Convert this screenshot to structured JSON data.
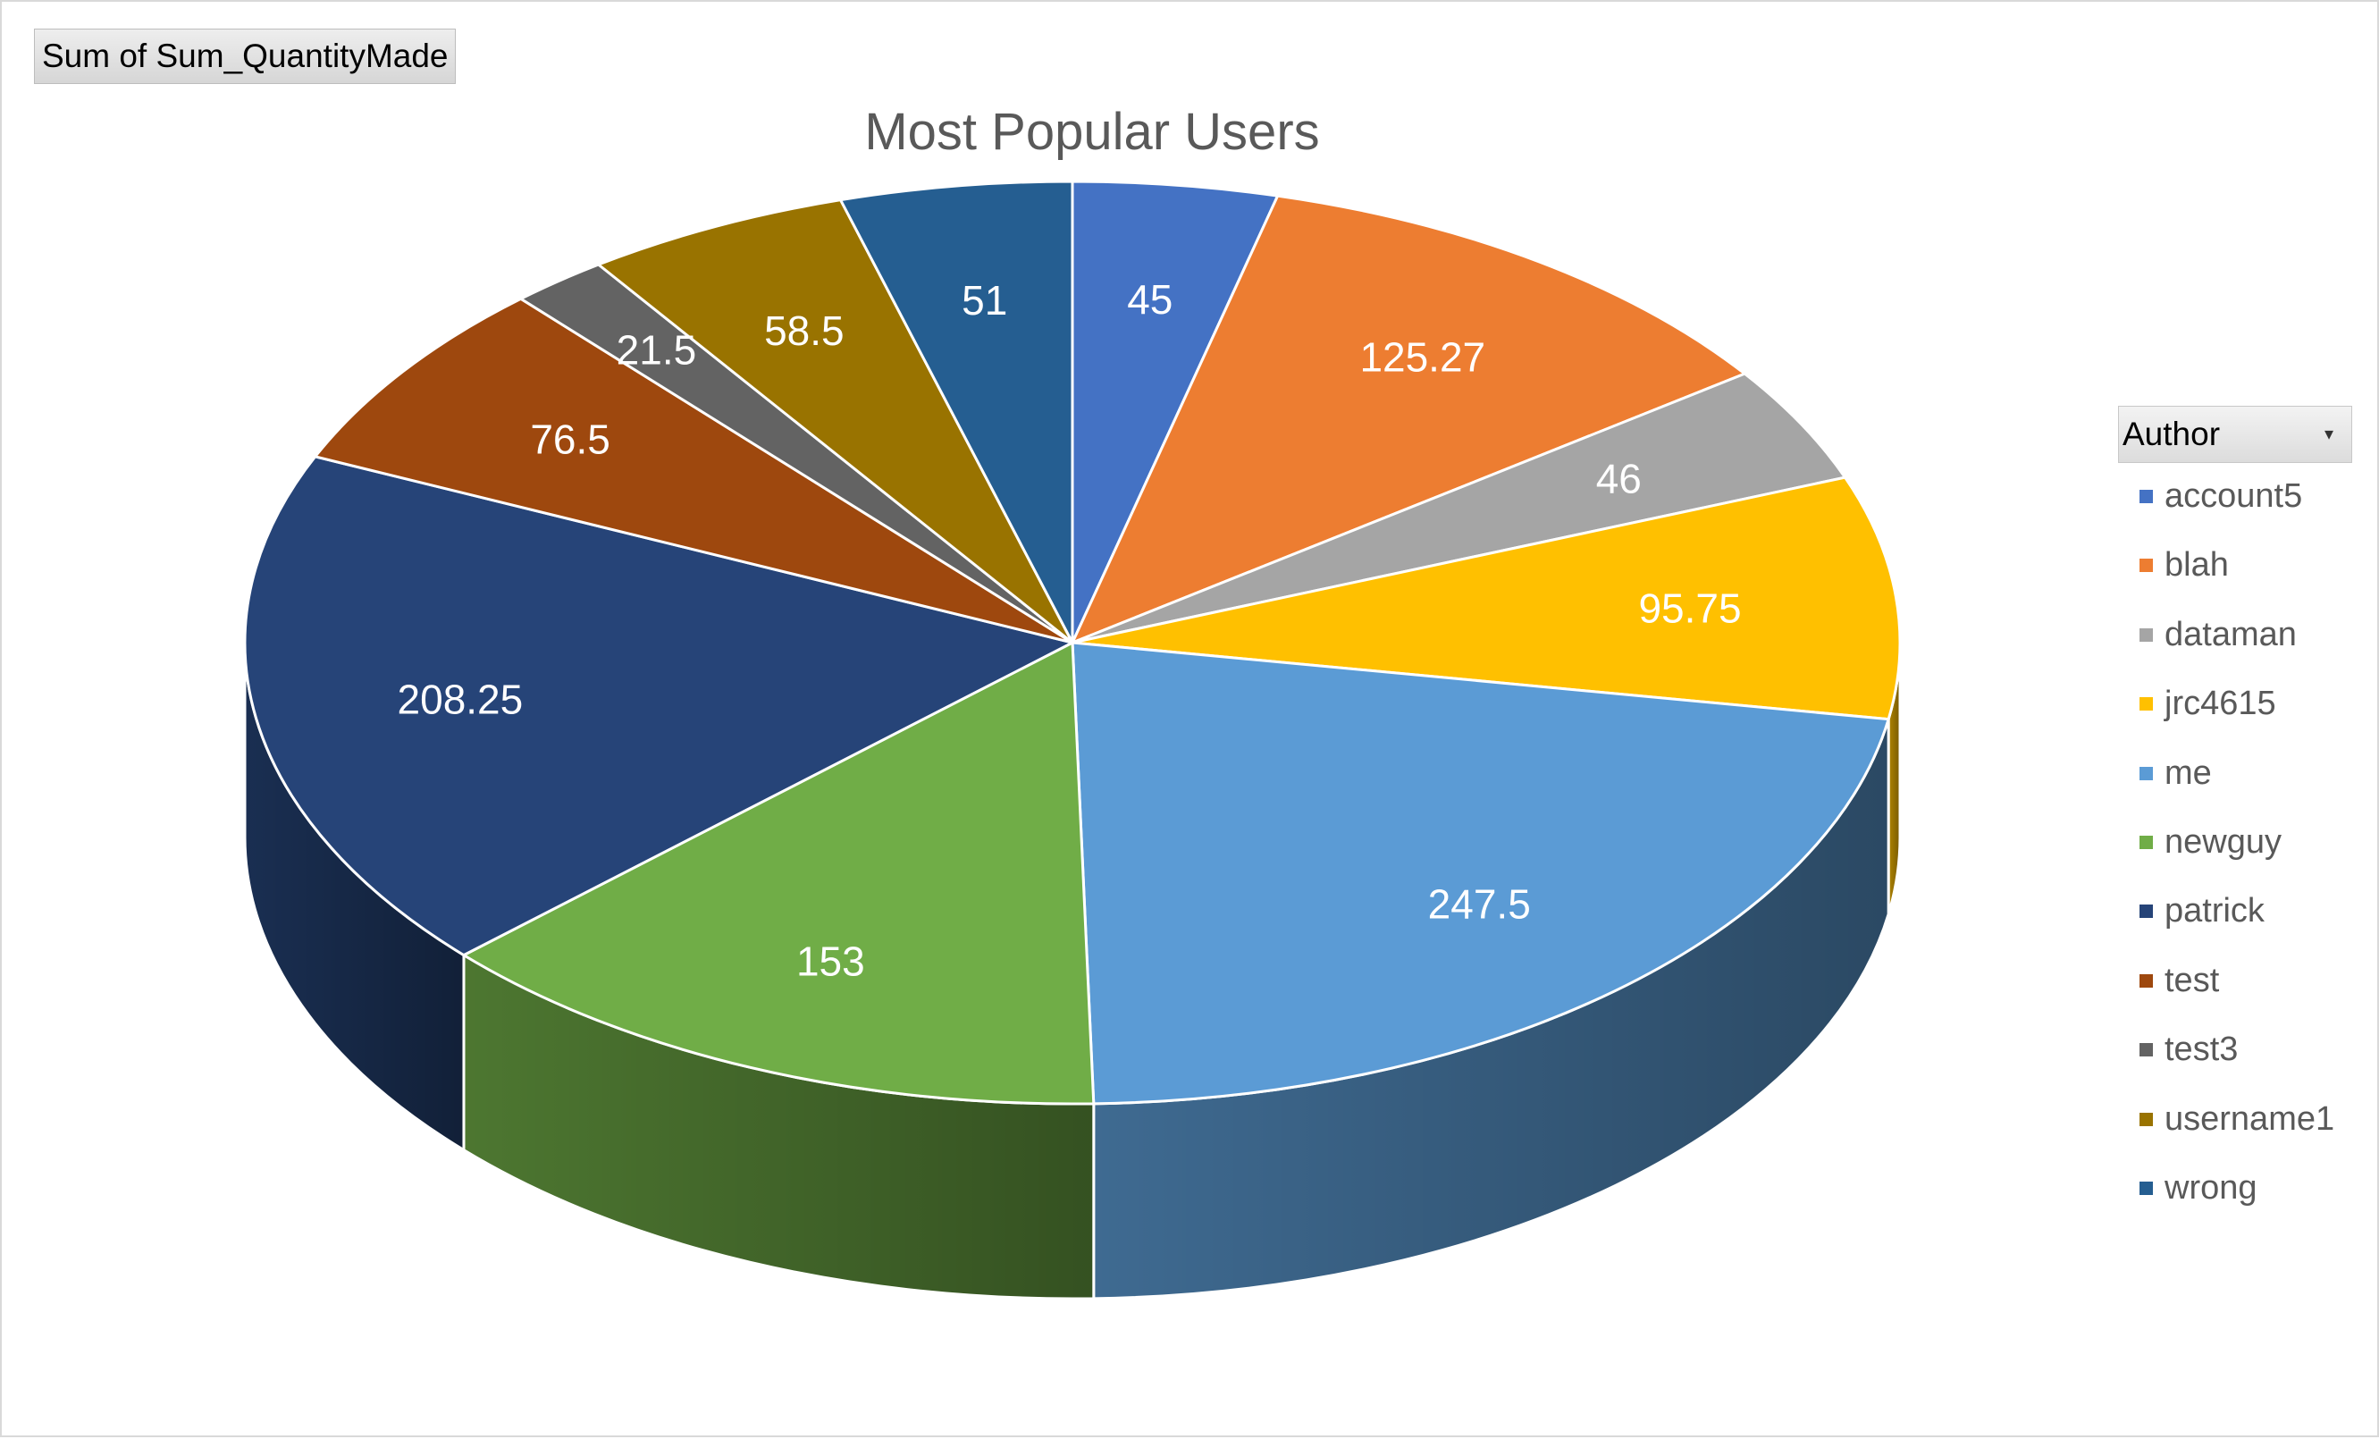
{
  "field_button": "Sum of Sum_QuantityMade",
  "legend_filter": {
    "label": "Author",
    "arrow": "▾"
  },
  "chart_data": {
    "type": "pie",
    "title": "Most Popular Users",
    "legend_title": "Author",
    "legend_position": "right",
    "style": "3d",
    "categories": [
      "account5",
      "blah",
      "dataman",
      "jrc4615",
      "me",
      "newguy",
      "patrick",
      "test",
      "test3",
      "username1",
      "wrong"
    ],
    "values": [
      45,
      125.27,
      46,
      95.75,
      247.5,
      153,
      208.25,
      76.5,
      21.5,
      58.5,
      51
    ],
    "data_labels": [
      "45",
      "125.27",
      "46",
      "95.75",
      "247.5",
      "153",
      "208.25",
      "76.5",
      "21.5",
      "58.5",
      "51"
    ],
    "colors": [
      "#4472C4",
      "#ED7D31",
      "#A5A5A5",
      "#FFC000",
      "#5B9BD5",
      "#70AD47",
      "#264478",
      "#9E480E",
      "#636363",
      "#997300",
      "#255E91"
    ]
  }
}
